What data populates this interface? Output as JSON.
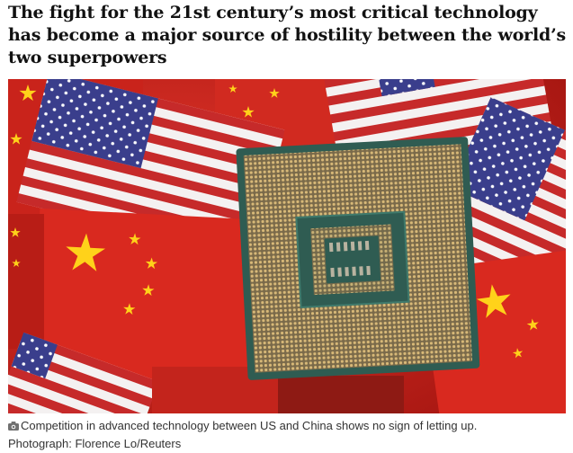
{
  "article": {
    "headline": "The fight for the 21st century’s most critical technology has become a major source of hostility between the world’s two superpowers",
    "image": {
      "icon": "camera-icon",
      "caption": "Competition in advanced technology between US and China shows no sign of letting up.",
      "credit": "Photograph: Florence Lo/Reuters"
    }
  },
  "colors": {
    "headline": "#121212",
    "caption": "#333333",
    "china_red": "#d6261d",
    "star_yellow": "#ffd21a",
    "us_blue": "#3a3e8c",
    "us_red": "#c62a2a",
    "chip_pcb": "#2f5c52",
    "pad_gold": "#c9a56a"
  }
}
